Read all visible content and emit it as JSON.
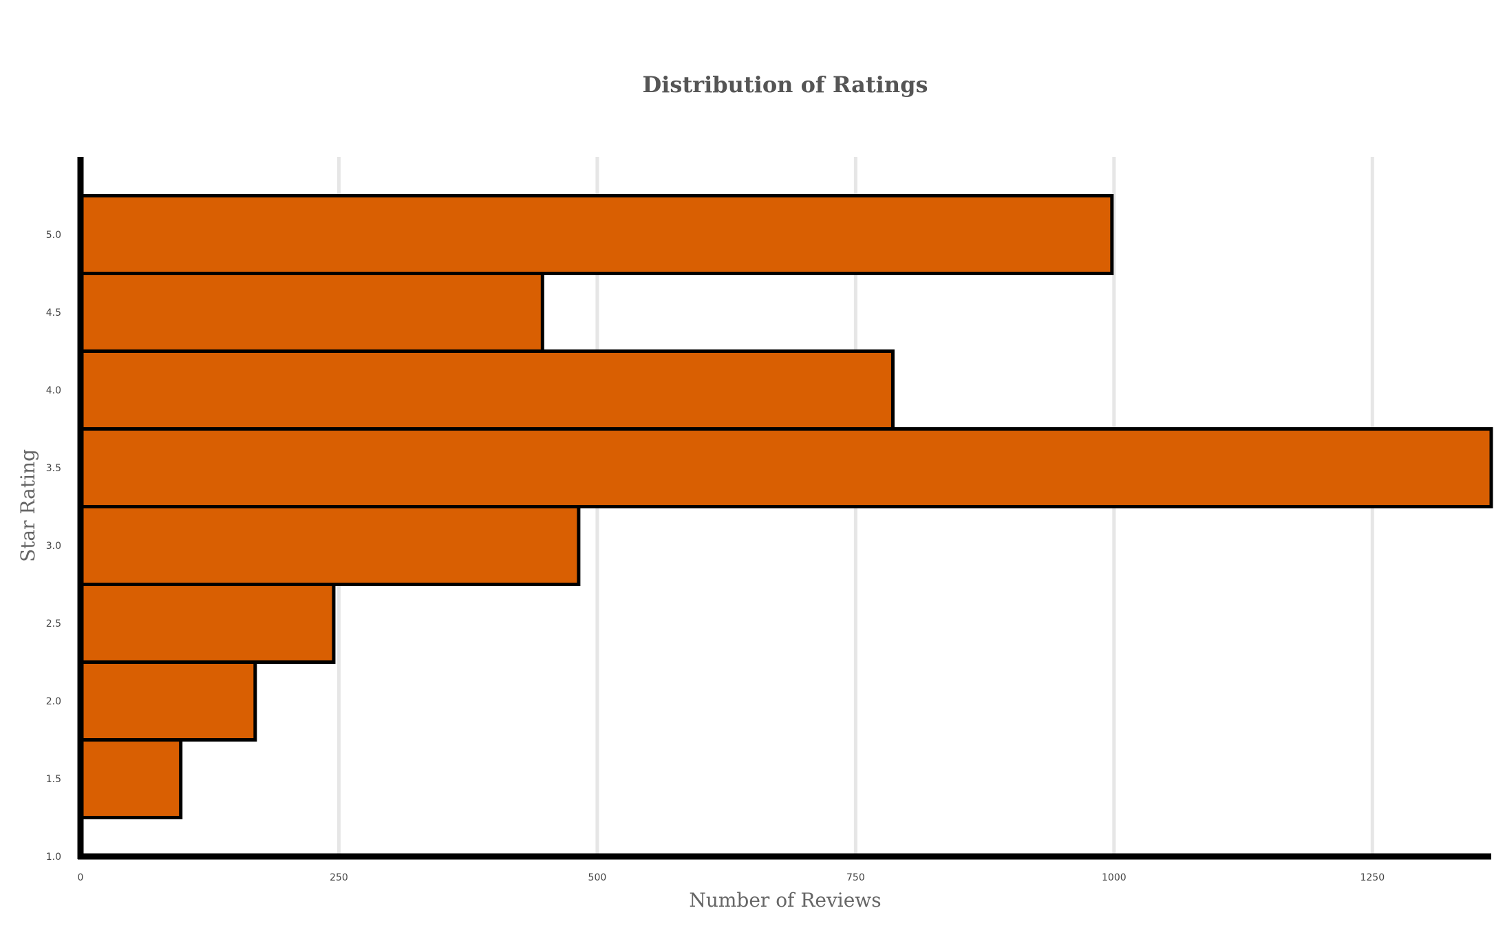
{
  "chart_data": {
    "type": "bar",
    "orientation": "horizontal",
    "title": "Distribution of Ratings",
    "xlabel": "Number of Reviews",
    "ylabel": "Star Rating",
    "xlim": [
      0,
      1365
    ],
    "ylim": [
      1.0,
      5.5
    ],
    "x_ticks": [
      0,
      250,
      500,
      750,
      1000,
      1250
    ],
    "y_ticks": [
      "1.0",
      "1.5",
      "2.0",
      "2.5",
      "3.0",
      "3.5",
      "4.0",
      "4.5",
      "5.0"
    ],
    "grid": "vertical",
    "legend": "none",
    "bar_color": "#d95f02",
    "bar_edge_color": "#000000",
    "bars": [
      {
        "rating": 5.0,
        "value": 998
      },
      {
        "rating": 4.5,
        "value": 447
      },
      {
        "rating": 4.0,
        "value": 786
      },
      {
        "rating": 3.5,
        "value": 1365
      },
      {
        "rating": 3.0,
        "value": 482
      },
      {
        "rating": 2.5,
        "value": 245
      },
      {
        "rating": 2.0,
        "value": 169
      },
      {
        "rating": 1.5,
        "value": 97
      }
    ]
  }
}
